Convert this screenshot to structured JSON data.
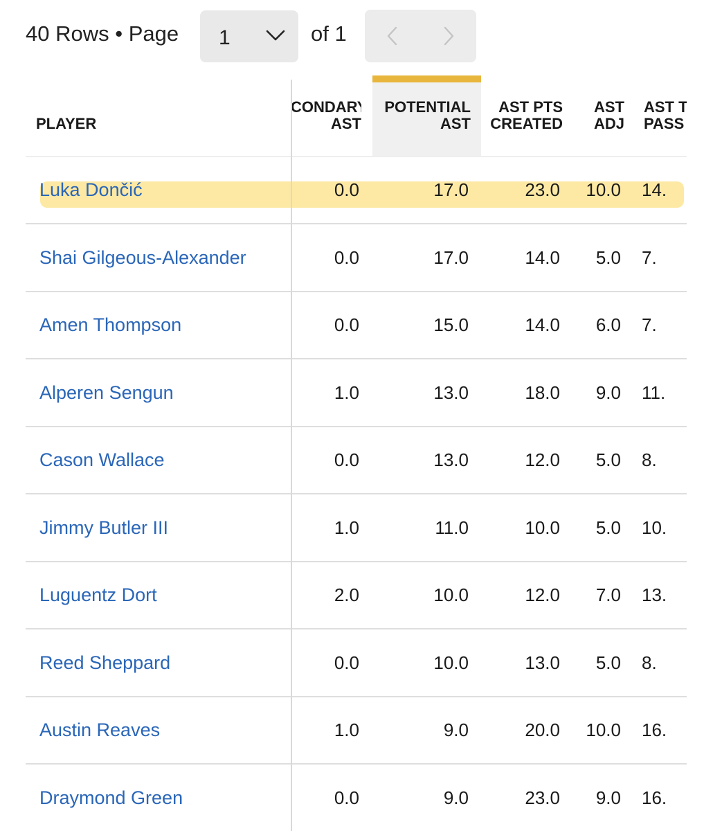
{
  "pagination": {
    "rows_text": "40 Rows • Page",
    "page_value": "1",
    "of_text": "of 1",
    "prev_icon": "chevron-left-icon",
    "next_icon": "chevron-right-icon"
  },
  "table": {
    "headers": {
      "player": "PLAYER",
      "secondary_ast_1": "CONDARY",
      "secondary_ast_2": "AST",
      "potential_ast_1": "POTENTIAL",
      "potential_ast_2": "AST",
      "ast_pts_created_1": "AST PTS",
      "ast_pts_created_2": "CREATED",
      "ast_adj_1": "AST",
      "ast_adj_2": "ADJ",
      "ast_to_pass_1": "AST T",
      "ast_to_pass_2": "PASS"
    },
    "sorted_column": "POTENTIAL AST",
    "sort_color": "#e8b63c",
    "link_color": "#2a66b8",
    "rows": [
      {
        "player": "Luka Dončić",
        "secondary_ast": "0.0",
        "potential_ast": "17.0",
        "ast_pts_created": "23.0",
        "ast_adj": "10.0",
        "ast_to_pass": "14."
      },
      {
        "player": "Shai Gilgeous-Alexander",
        "secondary_ast": "0.0",
        "potential_ast": "17.0",
        "ast_pts_created": "14.0",
        "ast_adj": "5.0",
        "ast_to_pass": "7."
      },
      {
        "player": "Amen Thompson",
        "secondary_ast": "0.0",
        "potential_ast": "15.0",
        "ast_pts_created": "14.0",
        "ast_adj": "6.0",
        "ast_to_pass": "7."
      },
      {
        "player": "Alperen Sengun",
        "secondary_ast": "1.0",
        "potential_ast": "13.0",
        "ast_pts_created": "18.0",
        "ast_adj": "9.0",
        "ast_to_pass": "11."
      },
      {
        "player": "Cason Wallace",
        "secondary_ast": "0.0",
        "potential_ast": "13.0",
        "ast_pts_created": "12.0",
        "ast_adj": "5.0",
        "ast_to_pass": "8."
      },
      {
        "player": "Jimmy Butler III",
        "secondary_ast": "1.0",
        "potential_ast": "11.0",
        "ast_pts_created": "10.0",
        "ast_adj": "5.0",
        "ast_to_pass": "10."
      },
      {
        "player": "Luguentz Dort",
        "secondary_ast": "2.0",
        "potential_ast": "10.0",
        "ast_pts_created": "12.0",
        "ast_adj": "7.0",
        "ast_to_pass": "13."
      },
      {
        "player": "Reed Sheppard",
        "secondary_ast": "0.0",
        "potential_ast": "10.0",
        "ast_pts_created": "13.0",
        "ast_adj": "5.0",
        "ast_to_pass": "8."
      },
      {
        "player": "Austin Reaves",
        "secondary_ast": "1.0",
        "potential_ast": "9.0",
        "ast_pts_created": "20.0",
        "ast_adj": "10.0",
        "ast_to_pass": "16."
      },
      {
        "player": "Draymond Green",
        "secondary_ast": "0.0",
        "potential_ast": "9.0",
        "ast_pts_created": "23.0",
        "ast_adj": "9.0",
        "ast_to_pass": "16."
      }
    ]
  }
}
